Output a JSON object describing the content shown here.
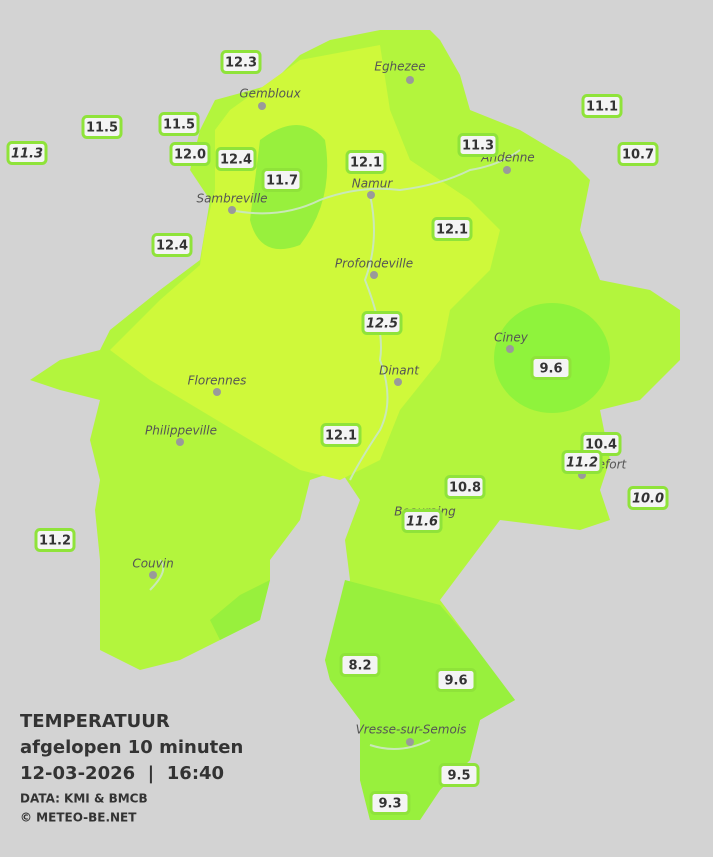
{
  "legend": {
    "heading": "TEMPERATUUR",
    "subheading": "afgelopen 10 minuten",
    "datetime": "12-03-2026  |  16:40",
    "source": "DATA: KMI & BMCB",
    "copyright": "© METEO-BE.NET"
  },
  "cities": [
    "Eghezee",
    "Gembloux",
    "Andenne",
    "Namur",
    "Sambreville",
    "Profondeville",
    "Ciney",
    "Dinant",
    "Florennes",
    "Philippeville",
    "Rochefort",
    "Beauraing",
    "Couvin",
    "Vresse-sur-Semois"
  ],
  "stations": [
    {
      "label": "12.3",
      "italic": false
    },
    {
      "label": "11.5",
      "italic": false
    },
    {
      "label": "11.5",
      "italic": false
    },
    {
      "label": "11.3",
      "italic": true
    },
    {
      "label": "12.0",
      "italic": false
    },
    {
      "label": "12.4",
      "italic": false
    },
    {
      "label": "11.7",
      "italic": false
    },
    {
      "label": "12.1",
      "italic": false
    },
    {
      "label": "11.3",
      "italic": false
    },
    {
      "label": "11.1",
      "italic": false
    },
    {
      "label": "10.7",
      "italic": false
    },
    {
      "label": "12.4",
      "italic": false
    },
    {
      "label": "12.1",
      "italic": false
    },
    {
      "label": "12.5",
      "italic": true
    },
    {
      "label": "9.6",
      "italic": false
    },
    {
      "label": "12.1",
      "italic": false
    },
    {
      "label": "10.4",
      "italic": false
    },
    {
      "label": "11.2",
      "italic": true
    },
    {
      "label": "10.8",
      "italic": false
    },
    {
      "label": "10.0",
      "italic": true
    },
    {
      "label": "11.6",
      "italic": true
    },
    {
      "label": "11.2",
      "italic": false
    },
    {
      "label": "8.2",
      "italic": false
    },
    {
      "label": "9.6",
      "italic": false
    },
    {
      "label": "9.5",
      "italic": false
    },
    {
      "label": "9.3",
      "italic": false
    }
  ]
}
